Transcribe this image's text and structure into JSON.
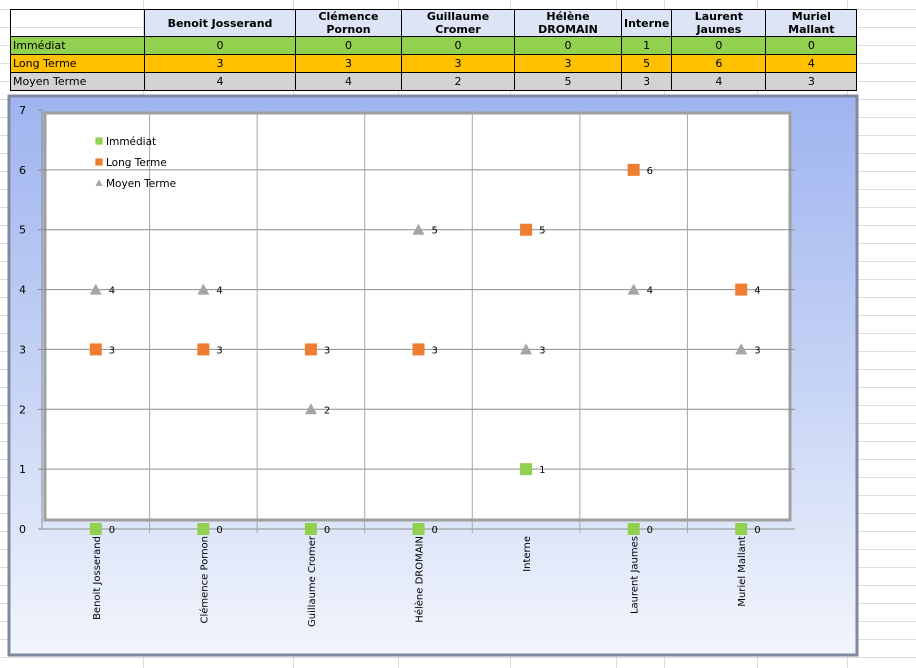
{
  "table": {
    "headers": [
      "Benoit Josserand",
      "Clémence Pornon",
      "Guillaume Cromer",
      "Hélène DROMAIN",
      "Interne",
      "Laurent Jaumes",
      "Muriel Mallant"
    ],
    "rows": [
      {
        "label": "Immédiat",
        "values": [
          "0",
          "0",
          "0",
          "0",
          "1",
          "0",
          "0"
        ]
      },
      {
        "label": "Long Terme",
        "values": [
          "3",
          "3",
          "3",
          "3",
          "5",
          "6",
          "4"
        ]
      },
      {
        "label": "Moyen Terme",
        "values": [
          "4",
          "4",
          "2",
          "5",
          "3",
          "4",
          "3"
        ]
      }
    ]
  },
  "chart_data": {
    "type": "scatter",
    "categories": [
      "Benoit Josserand",
      "Clémence Pornon",
      "Guillaume Cromer",
      "Hélène DROMAIN",
      "Interne",
      "Laurent Jaumes",
      "Muriel Mallant"
    ],
    "series": [
      {
        "name": "Immédiat",
        "marker": "square",
        "color": "#92d050",
        "values": [
          0,
          0,
          0,
          0,
          1,
          0,
          0
        ]
      },
      {
        "name": "Long Terme",
        "marker": "square",
        "color": "#ed7d31",
        "values": [
          3,
          3,
          3,
          3,
          5,
          6,
          4
        ]
      },
      {
        "name": "Moyen Terme",
        "marker": "triangle",
        "color": "#a5a5a5",
        "values": [
          4,
          4,
          2,
          5,
          3,
          4,
          3
        ]
      }
    ],
    "ylim": [
      0,
      7
    ],
    "yticks": [
      "0",
      "1",
      "2",
      "3",
      "4",
      "5",
      "6",
      "7"
    ],
    "legend": "top-left",
    "grid": true,
    "data_labels": true
  }
}
